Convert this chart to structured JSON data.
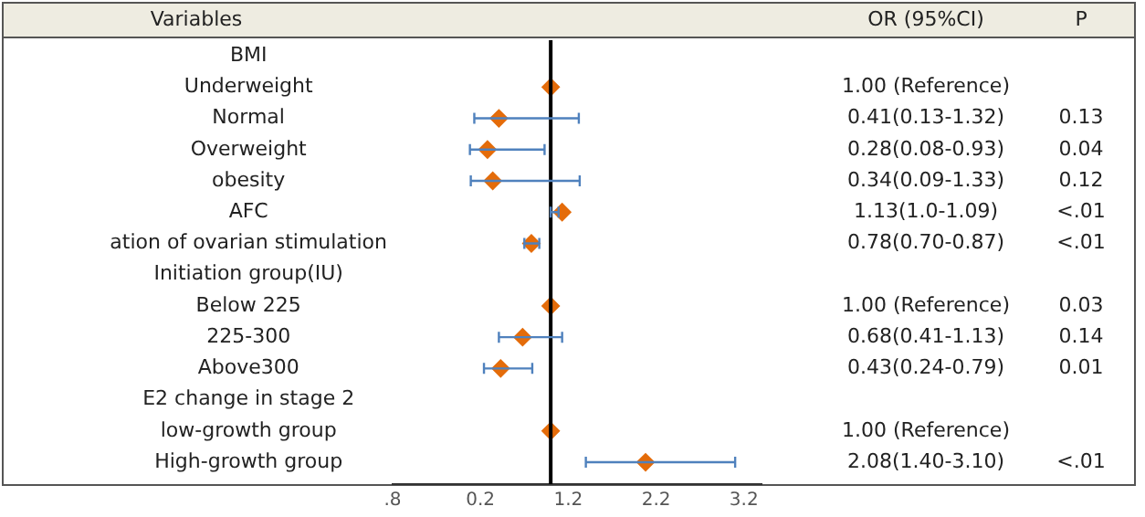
{
  "chart_data": {
    "type": "scatter",
    "orientation": "horizontal",
    "categories": [
      "BMI",
      "Underweight",
      "Normal",
      "Overweight",
      "obesity",
      "AFC",
      "ation of ovarian stimulation",
      "Initiation group(IU)",
      "Below 225",
      "225-300",
      "Above300",
      "E2 change in stage 2",
      "low-growth group",
      "High-growth group"
    ],
    "values": [
      null,
      1.0,
      0.41,
      0.28,
      0.34,
      1.13,
      0.78,
      null,
      1.0,
      0.68,
      0.43,
      null,
      1.0,
      2.08
    ],
    "errors": [
      null,
      null,
      [
        0.13,
        1.32
      ],
      [
        0.08,
        0.93
      ],
      [
        0.09,
        1.33
      ],
      [
        1.0,
        1.09
      ],
      [
        0.7,
        0.87
      ],
      null,
      null,
      [
        0.41,
        1.13
      ],
      [
        0.24,
        0.79
      ],
      null,
      null,
      [
        1.4,
        3.1
      ]
    ],
    "value_labels": [
      null,
      "1.00 (Reference)",
      "0.41(0.13-1.32)",
      "0.28(0.08-0.93)",
      "0.34(0.09-1.33)",
      "1.13(1.0-1.09)",
      "0.78(0.70-0.87)",
      null,
      "1.00 (Reference)",
      "0.68(0.41-1.13)",
      "0.43(0.24-0.79)",
      null,
      "1.00 (Reference)",
      "2.08(1.40-3.10)"
    ],
    "color": "#e46c0a",
    "marker": "diamond",
    "grid": false,
    "legend": false,
    "xlim": [
      -0.8,
      3.4
    ],
    "xticks": [
      {
        "value": -0.8,
        "label": ".8"
      },
      0.2,
      1.2,
      2.2,
      3.2
    ],
    "ref_lines": [
      {
        "axis": "x",
        "value": 1.0,
        "color": "#000000"
      }
    ],
    "annotations": [
      "Variables",
      "OR (95%CI)",
      "P",
      "0.13",
      "0.04",
      "0.12",
      "<.01",
      "<.01",
      "0.03",
      "0.14",
      "0.01",
      "<.01"
    ]
  }
}
